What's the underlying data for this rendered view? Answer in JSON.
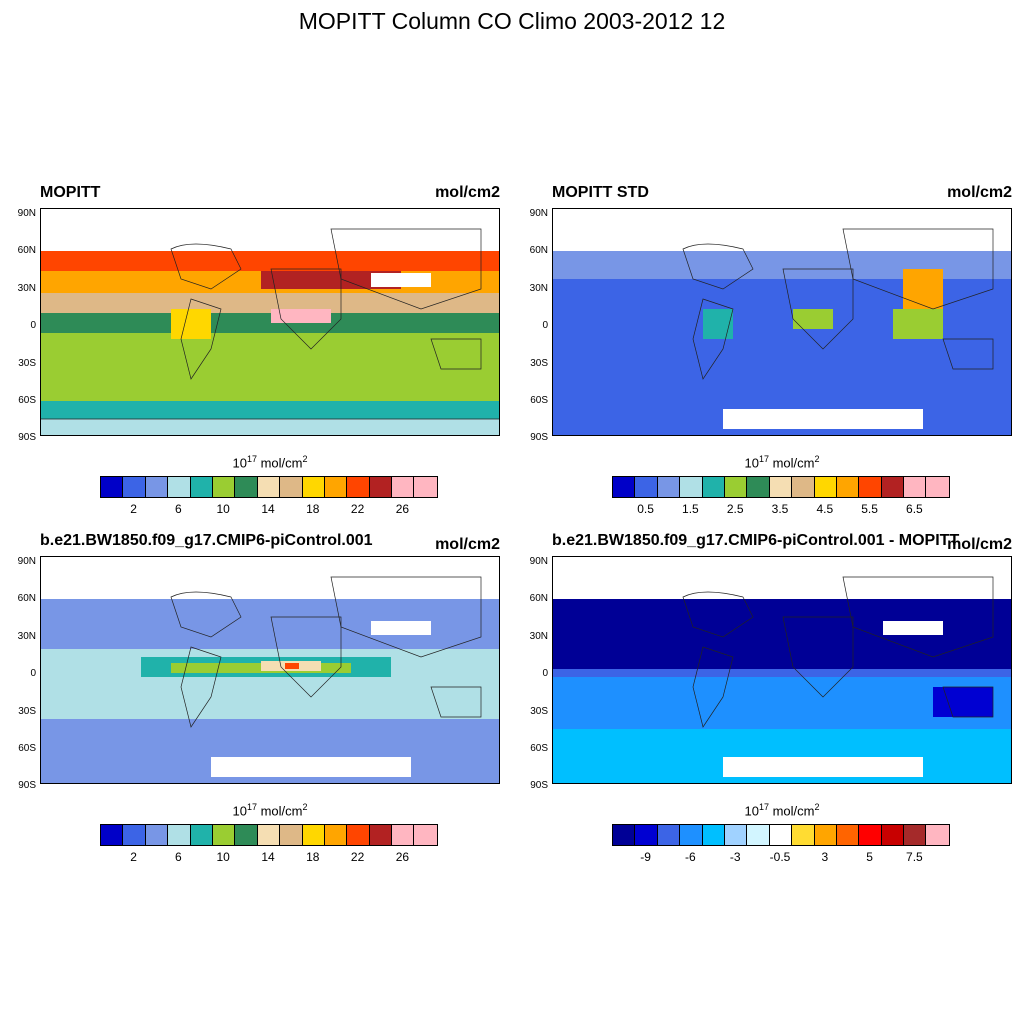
{
  "figure_title": "MOPITT Column CO Climo 2003-2012 12",
  "lat_ticks": [
    "90N",
    "60N",
    "30N",
    "0",
    "30S",
    "60S",
    "90S"
  ],
  "panels": [
    {
      "title": "MOPITT",
      "units": "mol/cm2",
      "colorbar_title": "mol/cm",
      "colorbar_exp": "17",
      "colorbar_sq": "2",
      "colorbar_colors": [
        "#0000c8",
        "#3c64e6",
        "#7896e6",
        "#b0e0e6",
        "#20b2aa",
        "#9acd32",
        "#2e8b57",
        "#f5deb3",
        "#deb887",
        "#ffd700",
        "#ffa500",
        "#ff4500",
        "#b22222",
        "#ffb6c1",
        "#ffb6c1"
      ],
      "colorbar_labels": [
        "2",
        "6",
        "10",
        "14",
        "18",
        "22",
        "26"
      ],
      "label_positions": [
        1,
        3,
        5,
        7,
        9,
        11,
        13
      ]
    },
    {
      "title": "MOPITT STD",
      "units": "mol/cm2",
      "colorbar_title": "mol/cm",
      "colorbar_exp": "17",
      "colorbar_sq": "2",
      "colorbar_colors": [
        "#0000c8",
        "#3c64e6",
        "#7896e6",
        "#b0e0e6",
        "#20b2aa",
        "#9acd32",
        "#2e8b57",
        "#f5deb3",
        "#deb887",
        "#ffd700",
        "#ffa500",
        "#ff4500",
        "#b22222",
        "#ffb6c1",
        "#ffb6c1"
      ],
      "colorbar_labels": [
        "0.5",
        "1.5",
        "2.5",
        "3.5",
        "4.5",
        "5.5",
        "6.5"
      ],
      "label_positions": [
        1,
        3,
        5,
        7,
        9,
        11,
        13
      ]
    },
    {
      "title": "b.e21.BW1850.f09_g17.CMIP6-piControl.001",
      "units": "mol/cm2",
      "colorbar_title": "mol/cm",
      "colorbar_exp": "17",
      "colorbar_sq": "2",
      "colorbar_colors": [
        "#0000c8",
        "#3c64e6",
        "#7896e6",
        "#b0e0e6",
        "#20b2aa",
        "#9acd32",
        "#2e8b57",
        "#f5deb3",
        "#deb887",
        "#ffd700",
        "#ffa500",
        "#ff4500",
        "#b22222",
        "#ffb6c1",
        "#ffb6c1"
      ],
      "colorbar_labels": [
        "2",
        "6",
        "10",
        "14",
        "18",
        "22",
        "26"
      ],
      "label_positions": [
        1,
        3,
        5,
        7,
        9,
        11,
        13
      ]
    },
    {
      "title": "b.e21.BW1850.f09_g17.CMIP6-piControl.001 - MOPITT",
      "units": "mol/cm2",
      "colorbar_title": "mol/cm",
      "colorbar_exp": "17",
      "colorbar_sq": "2",
      "colorbar_colors": [
        "#000096",
        "#0000d2",
        "#3c64e6",
        "#1e90ff",
        "#00bfff",
        "#a0d2ff",
        "#d2f5ff",
        "#ffffff",
        "#ffdc32",
        "#ffa500",
        "#ff6400",
        "#ff0000",
        "#c80000",
        "#a52a2a",
        "#ffb6c1"
      ],
      "colorbar_labels": [
        "-9",
        "-6",
        "-3",
        "-0.5",
        "3",
        "5",
        "7.5"
      ],
      "label_positions": [
        1,
        3,
        5,
        7,
        9,
        11,
        13
      ]
    }
  ]
}
